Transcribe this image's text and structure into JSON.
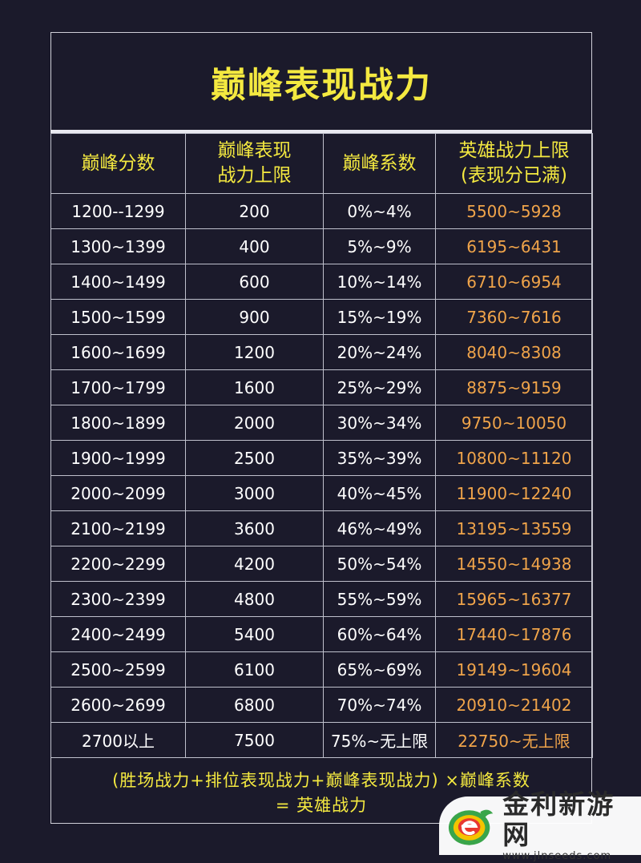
{
  "title": "巅峰表现战力",
  "headers": {
    "col1": "巅峰分数",
    "col2_line1": "巅峰表现",
    "col2_line2": "战力上限",
    "col3": "巅峰系数",
    "col4_line1": "英雄战力上限",
    "col4_line2": "(表现分已满)"
  },
  "rows": [
    [
      "1200--1299",
      "200",
      "0%~4%",
      "5500~5928"
    ],
    [
      "1300~1399",
      "400",
      "5%~9%",
      "6195~6431"
    ],
    [
      "1400~1499",
      "600",
      "10%~14%",
      "6710~6954"
    ],
    [
      "1500~1599",
      "900",
      "15%~19%",
      "7360~7616"
    ],
    [
      "1600~1699",
      "1200",
      "20%~24%",
      "8040~8308"
    ],
    [
      "1700~1799",
      "1600",
      "25%~29%",
      "8875~9159"
    ],
    [
      "1800~1899",
      "2000",
      "30%~34%",
      "9750~10050"
    ],
    [
      "1900~1999",
      "2500",
      "35%~39%",
      "10800~11120"
    ],
    [
      "2000~2099",
      "3000",
      "40%~45%",
      "11900~12240"
    ],
    [
      "2100~2199",
      "3600",
      "46%~49%",
      "13195~13559"
    ],
    [
      "2200~2299",
      "4200",
      "50%~54%",
      "14550~14938"
    ],
    [
      "2300~2399",
      "4800",
      "55%~59%",
      "15965~16377"
    ],
    [
      "2400~2499",
      "5400",
      "60%~64%",
      "17440~17876"
    ],
    [
      "2500~2599",
      "6100",
      "65%~69%",
      "19149~19604"
    ],
    [
      "2600~2699",
      "6800",
      "70%~74%",
      "20910~21402"
    ],
    [
      "2700以上",
      "7500",
      "75%~无上限",
      "22750~无上限"
    ]
  ],
  "formula": {
    "line1": "(胜场战力+排位表现战力+巅峰表现战力) ×巅峰系数",
    "line2": "= 英雄战力"
  },
  "watermark": {
    "name": "金利新游网",
    "url": "www.jlnseeds.com"
  },
  "colors": {
    "background": "#1b1a2b",
    "title": "#f4e940",
    "cap_values": "#f0a44a",
    "text": "#ffffff"
  }
}
